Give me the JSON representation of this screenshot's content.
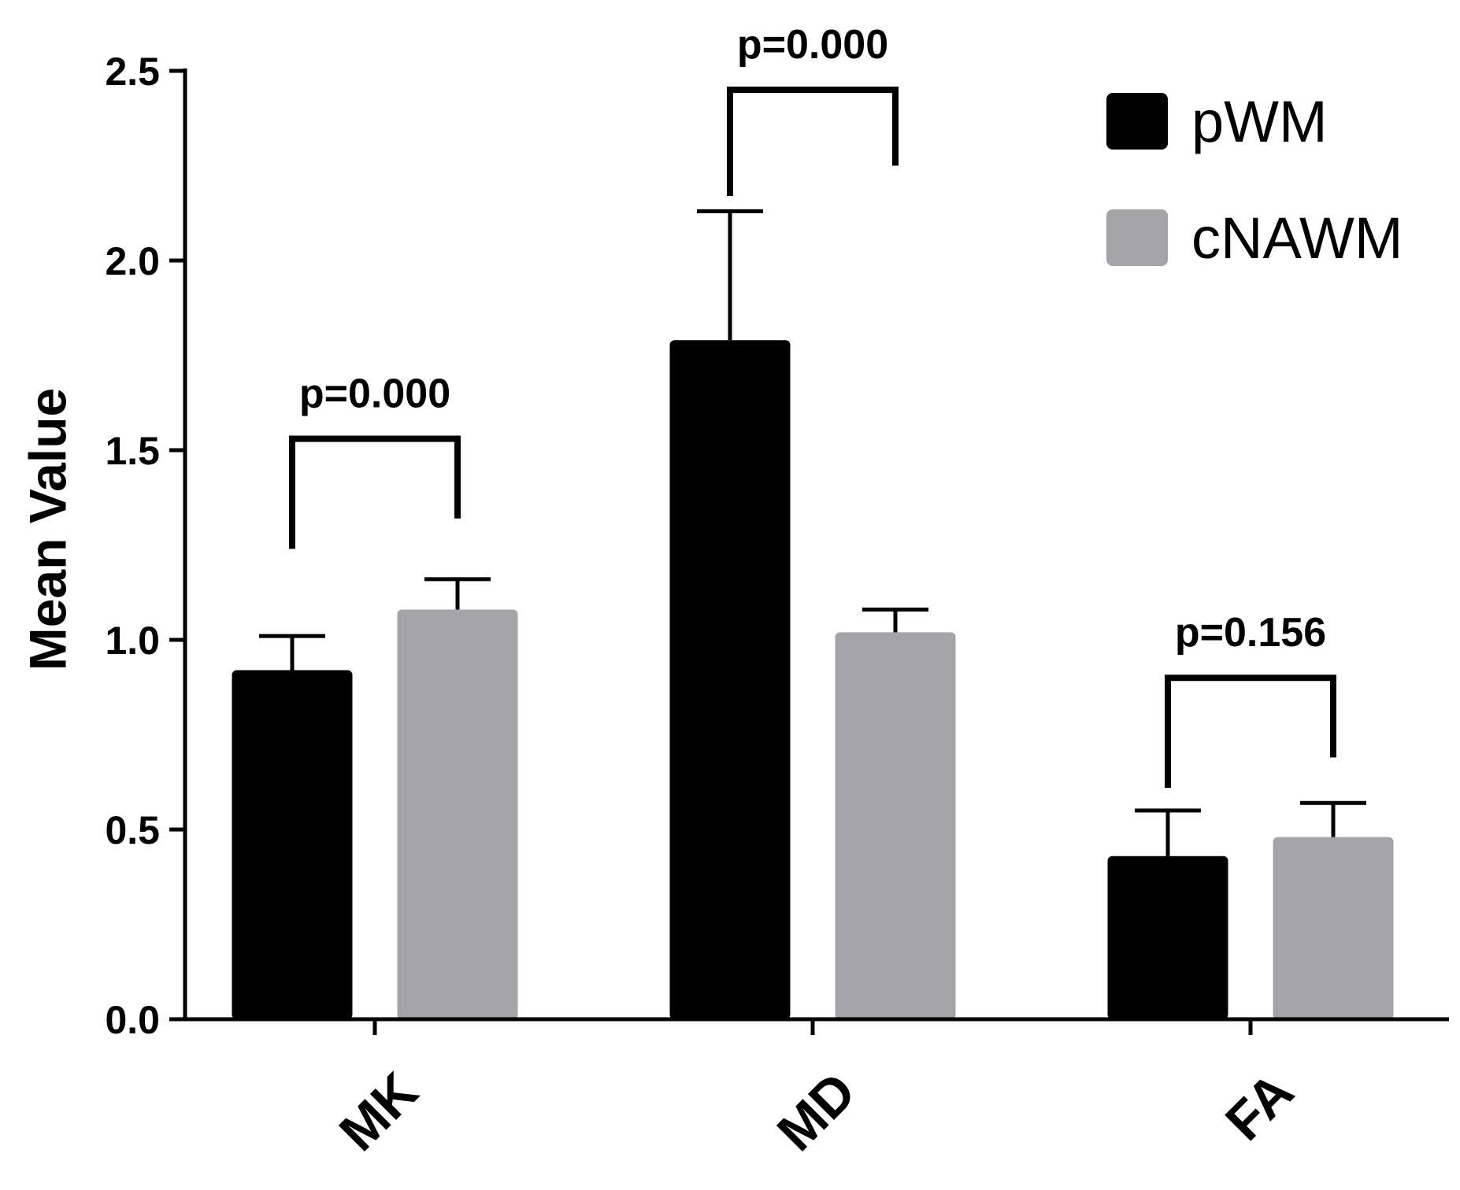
{
  "chart_data": {
    "type": "bar",
    "title": "",
    "xlabel": "",
    "ylabel": "Mean Value",
    "ylim": [
      0,
      2.5
    ],
    "yticks": [
      0.0,
      0.5,
      1.0,
      1.5,
      2.0,
      2.5
    ],
    "ytick_labels": [
      "0.0",
      "0.5",
      "1.0",
      "1.5",
      "2.0",
      "2.5"
    ],
    "categories": [
      "MK",
      "MD",
      "FA"
    ],
    "series": [
      {
        "name": "pWM",
        "color": "#000000",
        "values": [
          0.92,
          1.79,
          0.43
        ],
        "errors": [
          0.09,
          0.34,
          0.12
        ]
      },
      {
        "name": "cNAWM",
        "color": "#a4a3a7",
        "values": [
          1.08,
          1.02,
          0.48
        ],
        "errors": [
          0.08,
          0.06,
          0.09
        ]
      }
    ],
    "annotations": [
      {
        "category": "MK",
        "text": "p=0.000",
        "bracket_y": 1.53,
        "left_end": 1.24,
        "right_end": 1.32
      },
      {
        "category": "MD",
        "text": "p=0.000",
        "bracket_y": 2.45,
        "left_end": 2.17,
        "right_end": 2.25
      },
      {
        "category": "FA",
        "text": "p=0.156",
        "bracket_y": 0.9,
        "left_end": 0.61,
        "right_end": 0.69
      }
    ],
    "legend": {
      "position": "top-right"
    },
    "grid": false
  }
}
